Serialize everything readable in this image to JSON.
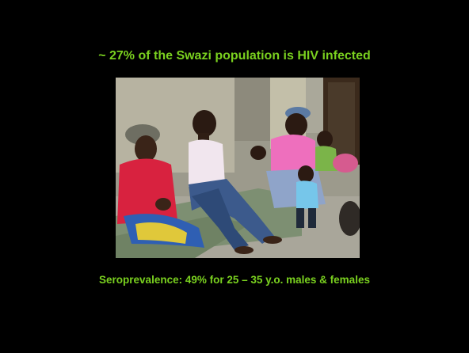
{
  "slide": {
    "title": "~ 27% of the Swazi population is HIV infected",
    "caption": "Seroprevalence: 49% for 25 – 35 y.o. males & females",
    "text_color": "#7ad11f",
    "background": "#000000"
  },
  "photo": {
    "subject": "people-seated-on-mattress"
  }
}
